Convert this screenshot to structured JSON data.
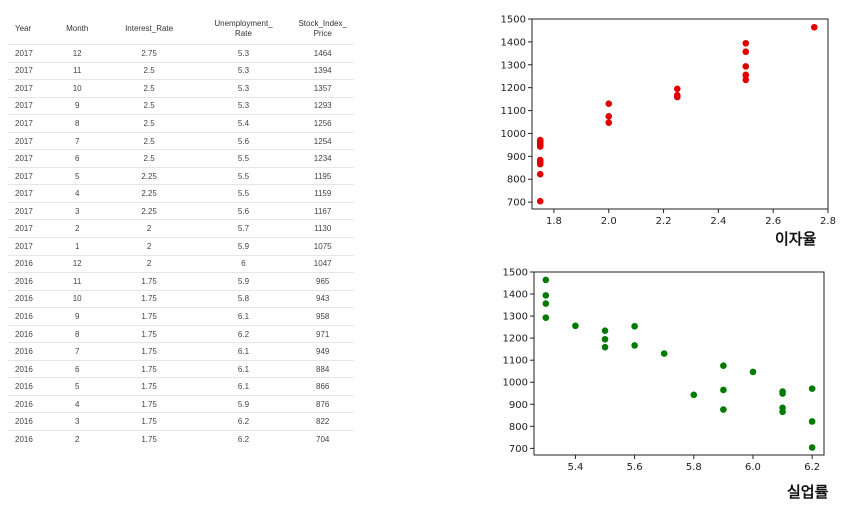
{
  "table": {
    "headers": {
      "year": "Year",
      "month": "Month",
      "interest": "Interest_Rate",
      "unemployment": [
        "Unemployment_",
        "Rate"
      ],
      "stock": [
        "Stock_Index_",
        "Price"
      ]
    },
    "rows": [
      [
        "2017",
        "12",
        "2.75",
        "5.3",
        "1464"
      ],
      [
        "2017",
        "11",
        "2.5",
        "5.3",
        "1394"
      ],
      [
        "2017",
        "10",
        "2.5",
        "5.3",
        "1357"
      ],
      [
        "2017",
        "9",
        "2.5",
        "5.3",
        "1293"
      ],
      [
        "2017",
        "8",
        "2.5",
        "5.4",
        "1256"
      ],
      [
        "2017",
        "7",
        "2.5",
        "5.6",
        "1254"
      ],
      [
        "2017",
        "6",
        "2.5",
        "5.5",
        "1234"
      ],
      [
        "2017",
        "5",
        "2.25",
        "5.5",
        "1195"
      ],
      [
        "2017",
        "4",
        "2.25",
        "5.5",
        "1159"
      ],
      [
        "2017",
        "3",
        "2.25",
        "5.6",
        "1167"
      ],
      [
        "2017",
        "2",
        "2",
        "5.7",
        "1130"
      ],
      [
        "2017",
        "1",
        "2",
        "5.9",
        "1075"
      ],
      [
        "2016",
        "12",
        "2",
        "6",
        "1047"
      ],
      [
        "2016",
        "11",
        "1.75",
        "5.9",
        "965"
      ],
      [
        "2016",
        "10",
        "1.75",
        "5.8",
        "943"
      ],
      [
        "2016",
        "9",
        "1.75",
        "6.1",
        "958"
      ],
      [
        "2016",
        "8",
        "1.75",
        "6.2",
        "971"
      ],
      [
        "2016",
        "7",
        "1.75",
        "6.1",
        "949"
      ],
      [
        "2016",
        "6",
        "1.75",
        "6.1",
        "884"
      ],
      [
        "2016",
        "5",
        "1.75",
        "6.1",
        "866"
      ],
      [
        "2016",
        "4",
        "1.75",
        "5.9",
        "876"
      ],
      [
        "2016",
        "3",
        "1.75",
        "6.2",
        "822"
      ],
      [
        "2016",
        "2",
        "1.75",
        "6.2",
        "704"
      ]
    ]
  },
  "chart_data": [
    {
      "type": "scatter",
      "xlabel": "이자율",
      "ylabel": "",
      "color": "#e00000",
      "xlim": [
        1.72,
        2.8
      ],
      "ylim": [
        670,
        1500
      ],
      "xticks": [
        "1.8",
        "2.0",
        "2.2",
        "2.4",
        "2.6",
        "2.8"
      ],
      "xtick_values": [
        1.8,
        2.0,
        2.2,
        2.4,
        2.6,
        2.8
      ],
      "yticks": [
        "700",
        "800",
        "900",
        "1000",
        "1100",
        "1200",
        "1300",
        "1400",
        "1500"
      ],
      "ytick_values": [
        700,
        800,
        900,
        1000,
        1100,
        1200,
        1300,
        1400,
        1500
      ],
      "x": [
        2.75,
        2.5,
        2.5,
        2.5,
        2.5,
        2.5,
        2.5,
        2.25,
        2.25,
        2.25,
        2,
        2,
        2,
        1.75,
        1.75,
        1.75,
        1.75,
        1.75,
        1.75,
        1.75,
        1.75,
        1.75,
        1.75
      ],
      "y": [
        1464,
        1394,
        1357,
        1293,
        1256,
        1254,
        1234,
        1195,
        1159,
        1167,
        1130,
        1075,
        1047,
        965,
        943,
        958,
        971,
        949,
        884,
        866,
        876,
        822,
        704
      ]
    },
    {
      "type": "scatter",
      "xlabel": "실업률",
      "ylabel": "",
      "color": "#007a00",
      "xlim": [
        5.26,
        6.24
      ],
      "ylim": [
        670,
        1500
      ],
      "xticks": [
        "5.4",
        "5.6",
        "5.8",
        "6.0",
        "6.2"
      ],
      "xtick_values": [
        5.4,
        5.6,
        5.8,
        6.0,
        6.2
      ],
      "yticks": [
        "700",
        "800",
        "900",
        "1000",
        "1100",
        "1200",
        "1300",
        "1400",
        "1500"
      ],
      "ytick_values": [
        700,
        800,
        900,
        1000,
        1100,
        1200,
        1300,
        1400,
        1500
      ],
      "x": [
        5.3,
        5.3,
        5.3,
        5.3,
        5.4,
        5.6,
        5.5,
        5.5,
        5.5,
        5.6,
        5.7,
        5.9,
        6,
        5.9,
        5.8,
        6.1,
        6.2,
        6.1,
        6.1,
        6.1,
        5.9,
        6.2,
        6.2
      ],
      "y": [
        1464,
        1394,
        1357,
        1293,
        1256,
        1254,
        1234,
        1195,
        1159,
        1167,
        1130,
        1075,
        1047,
        965,
        943,
        958,
        971,
        949,
        884,
        866,
        876,
        822,
        704
      ]
    }
  ]
}
